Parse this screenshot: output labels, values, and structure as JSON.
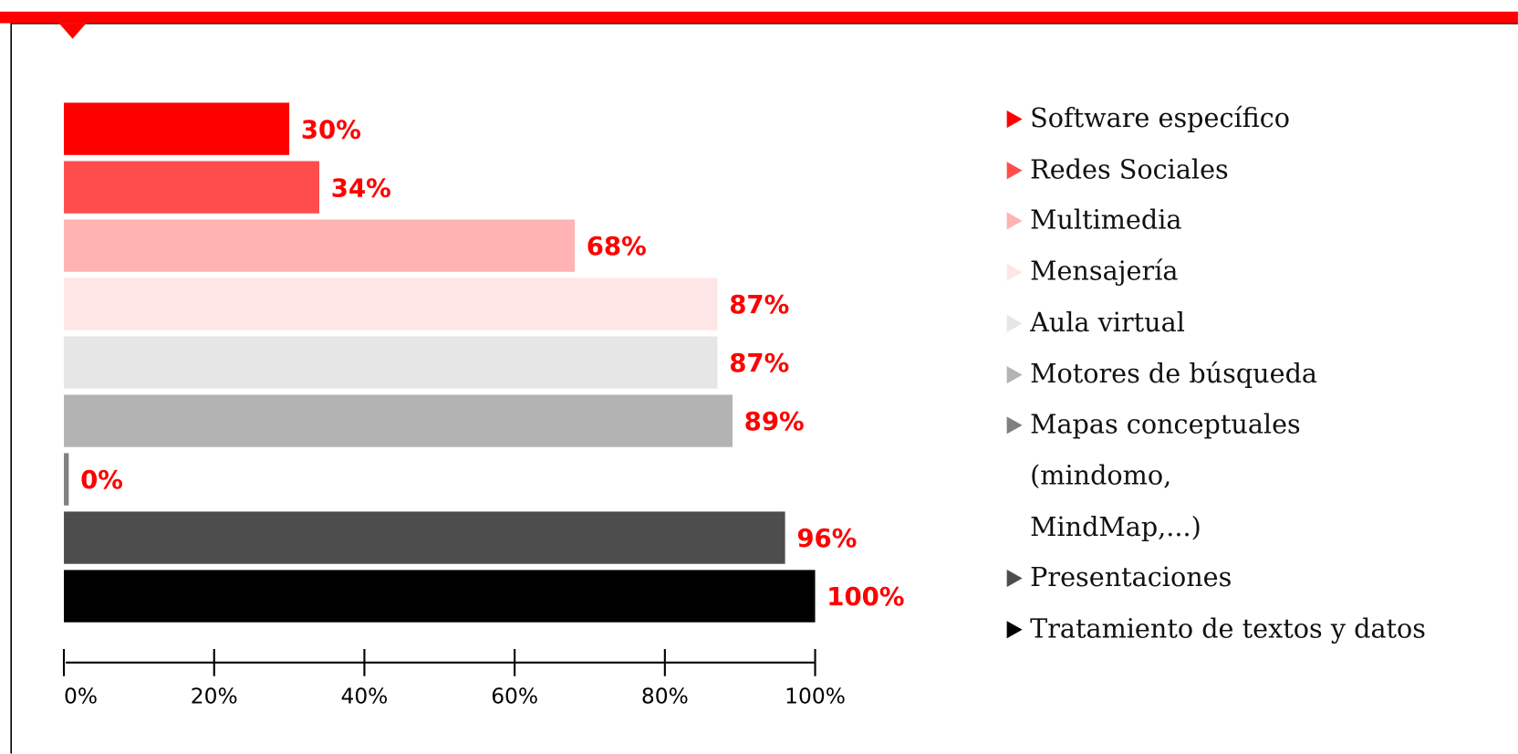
{
  "chart_data": {
    "type": "bar",
    "orientation": "horizontal",
    "categories": [
      "Software específico",
      "Redes Sociales",
      "Multimedia",
      "Mensajería",
      "Aula virtual",
      "Motores de búsqueda",
      "Mapas conceptuales (mindomo, MindMap,...)",
      "Presentaciones",
      "Tratamiento de textos y datos"
    ],
    "values": [
      30,
      34,
      68,
      87,
      87,
      89,
      0,
      96,
      100
    ],
    "value_labels": [
      "30%",
      "34%",
      "68%",
      "87%",
      "87%",
      "89%",
      "0%",
      "96%",
      "100%"
    ],
    "colors": [
      "#ff0000",
      "#ff4d4d",
      "#ffb3b3",
      "#ffe6e6",
      "#e6e6e6",
      "#b3b3b3",
      "#808080",
      "#4d4d4d",
      "#000000"
    ],
    "xlim": [
      0,
      100
    ],
    "xticks": [
      {
        "value": 0,
        "label": "0%"
      },
      {
        "value": 20,
        "label": "20%"
      },
      {
        "value": 40,
        "label": "40%"
      },
      {
        "value": 60,
        "label": "60%"
      },
      {
        "value": 80,
        "label": "80%"
      },
      {
        "value": 100,
        "label": "100%"
      }
    ],
    "legend": "right"
  }
}
